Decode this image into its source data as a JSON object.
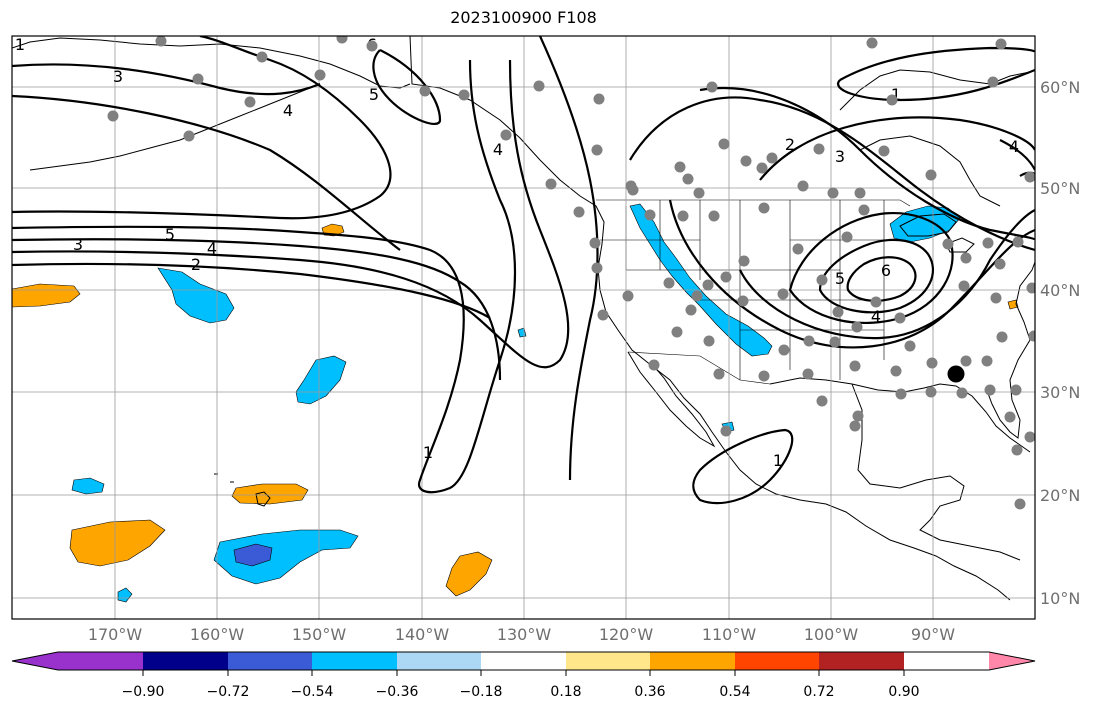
{
  "map": {
    "title": "2023100900 F108",
    "lon_ticks": [
      "170°W",
      "160°W",
      "150°W",
      "140°W",
      "130°W",
      "120°W",
      "110°W",
      "100°W",
      "90°W"
    ],
    "lat_ticks": [
      "60°N",
      "50°N",
      "40°N",
      "30°N",
      "20°N",
      "10°N"
    ],
    "contour_labels": [
      "3",
      "6",
      "5",
      "4",
      "3",
      "2",
      "1",
      "5",
      "4",
      "4",
      "1",
      "1",
      "2",
      "3",
      "4",
      "5",
      "6",
      "4",
      "1",
      "1"
    ],
    "station_marker_color": "#808080",
    "highlight_marker_color": "#000000"
  },
  "colorbar": {
    "colors": [
      "#9932cc",
      "#00008b",
      "#3b5bd6",
      "#00bfff",
      "#add8f5",
      "#ffffff",
      "#ffe68a",
      "#ffa500",
      "#ff4500",
      "#b22222",
      "#ff88aa"
    ],
    "tick_labels": [
      "−0.90",
      "−0.72",
      "−0.54",
      "−0.36",
      "−0.18",
      "0.18",
      "0.36",
      "0.54",
      "0.72",
      "0.90"
    ]
  }
}
